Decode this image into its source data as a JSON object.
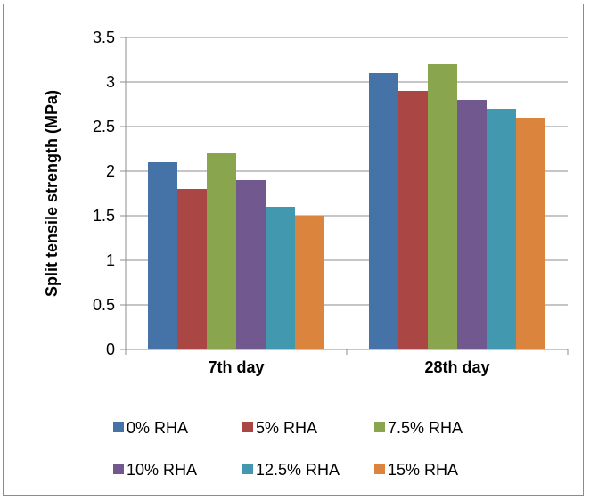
{
  "chart_data": {
    "type": "bar",
    "categories": [
      "7th day",
      "28th day"
    ],
    "series": [
      {
        "name": "0% RHA",
        "values": [
          2.1,
          3.1
        ],
        "color": "#4572A7"
      },
      {
        "name": "5% RHA",
        "values": [
          1.8,
          2.9
        ],
        "color": "#AA4643"
      },
      {
        "name": "7.5% RHA",
        "values": [
          2.2,
          3.2
        ],
        "color": "#89A54E"
      },
      {
        "name": "10% RHA",
        "values": [
          1.9,
          2.8
        ],
        "color": "#71588F"
      },
      {
        "name": "12.5% RHA",
        "values": [
          1.6,
          2.7
        ],
        "color": "#4198AF"
      },
      {
        "name": "15% RHA",
        "values": [
          1.5,
          2.6
        ],
        "color": "#DB843D"
      }
    ],
    "ylabel": "Split tensile strength (MPa)",
    "ylim": [
      0,
      3.5
    ],
    "yticks": [
      "0",
      "0.5",
      "1",
      "1.5",
      "2",
      "2.5",
      "3",
      "3.5"
    ],
    "grid": true,
    "legend_position": "bottom"
  }
}
